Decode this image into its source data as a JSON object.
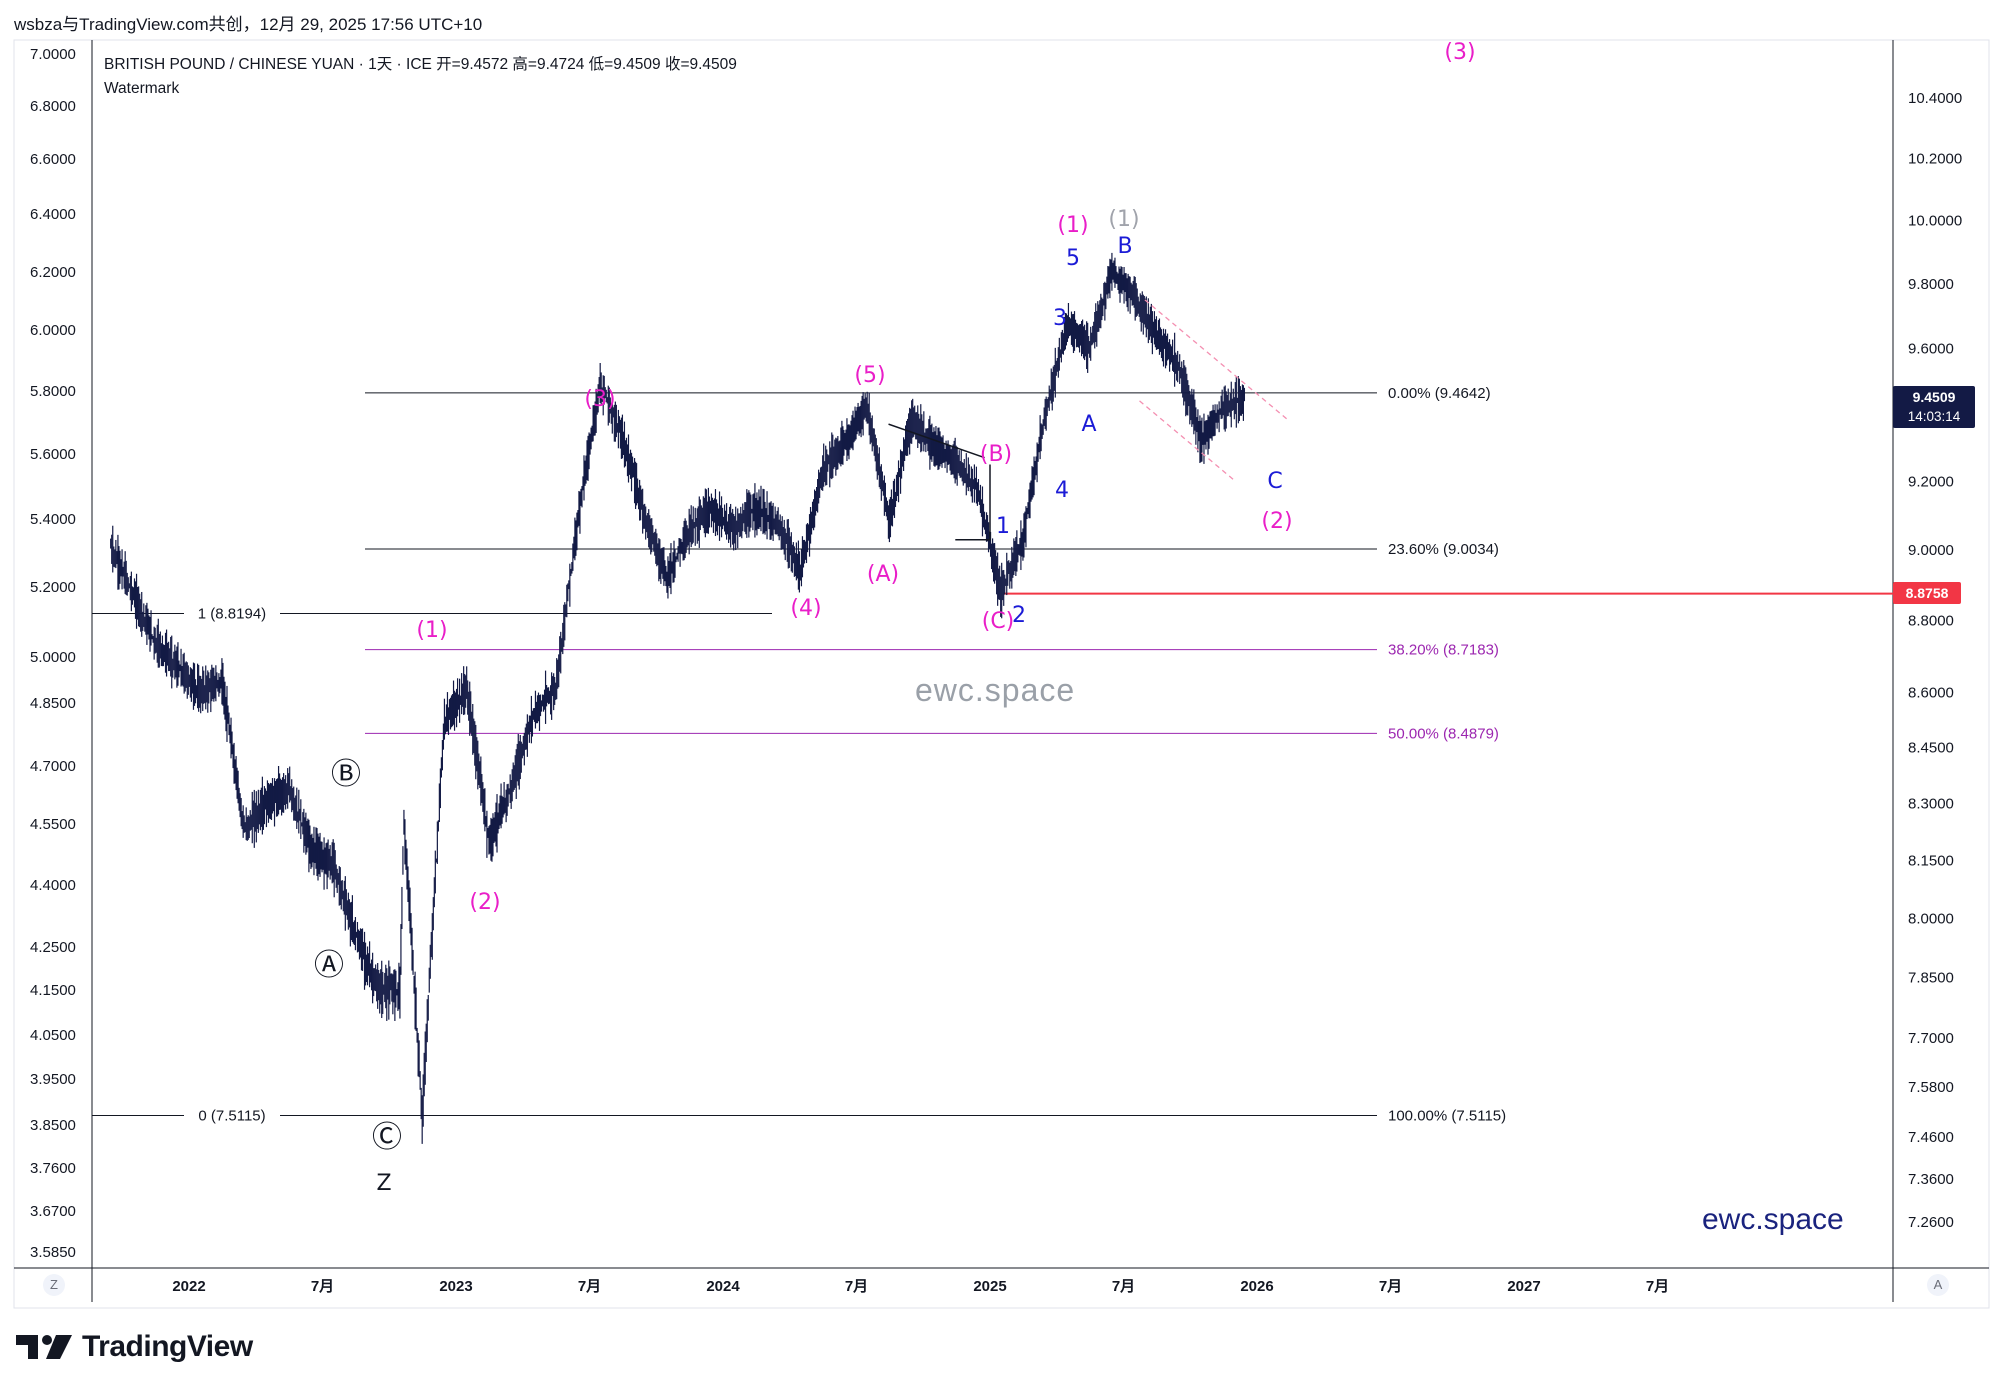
{
  "header": {
    "watermark_line": "wsbza与TradingView.com共创，12月 29, 2025 17:56 UTC+10"
  },
  "legend": {
    "symbol_line": "BRITISH POUND / CHINESE YUAN · 1天 · ICE  开=9.4572  高=9.4724  低=9.4509  收=9.4509",
    "sub": "Watermark"
  },
  "brand": {
    "name": "TradingView",
    "logo": "tradingview-logo"
  },
  "watermarks": {
    "center": "ewc.space",
    "corner": "ewc.space"
  },
  "price_label": {
    "price": "9.4509",
    "countdown": "14:03:14"
  },
  "red_line_label": "8.8758",
  "buttons": {
    "left": "Z",
    "right": "A"
  },
  "colors": {
    "accent_magenta": "#e91ec8",
    "wave_blue": "#1b1bd6",
    "fib_purple": "#9c27b0",
    "price_line_red": "#f23645",
    "candles": "#131a45"
  },
  "chart_data": {
    "type": "candlestick",
    "title": "BRITISH POUND / CHINESE YUAN · 1天 · ICE",
    "left_axis_ticks": [
      "7.0000",
      "6.8000",
      "6.6000",
      "6.4000",
      "6.2000",
      "6.0000",
      "5.8000",
      "5.6000",
      "5.4000",
      "5.2000",
      "5.0000",
      "4.8500",
      "4.7000",
      "4.5500",
      "4.4000",
      "4.2500",
      "4.1500",
      "4.0500",
      "3.9500",
      "3.8500",
      "3.7600",
      "3.6700",
      "3.5850"
    ],
    "right_axis_ticks": [
      "10.4000",
      "10.2000",
      "10.0000",
      "9.8000",
      "9.6000",
      "9.4000",
      "9.2000",
      "9.0000",
      "8.8000",
      "8.6000",
      "8.4500",
      "8.3000",
      "8.1500",
      "8.0000",
      "7.8500",
      "7.7000",
      "7.5800",
      "7.4600",
      "7.3600",
      "7.2600"
    ],
    "x_axis_ticks": [
      "2022",
      "7月",
      "2023",
      "7月",
      "2024",
      "7月",
      "2025",
      "7月",
      "2026",
      "7月",
      "2027",
      "7月"
    ],
    "price_path": [
      [
        "2021-09",
        9.01
      ],
      [
        "2021-11",
        8.74
      ],
      [
        "2022-01",
        8.6
      ],
      [
        "2022-02",
        8.63
      ],
      [
        "2022-03",
        8.23
      ],
      [
        "2022-04",
        8.3
      ],
      [
        "2022-05",
        8.34
      ],
      [
        "2022-06",
        8.18
      ],
      [
        "2022-07",
        8.14
      ],
      [
        "2022-08",
        7.96
      ],
      [
        "2022-09",
        7.82
      ],
      [
        "2022-10",
        7.82
      ],
      [
        "2022-10",
        8.25
      ],
      [
        "2022-11",
        7.51
      ],
      [
        "2022-12",
        8.52
      ],
      [
        "2023-01",
        8.61
      ],
      [
        "2023-02",
        8.2
      ],
      [
        "2023-03",
        8.34
      ],
      [
        "2023-04",
        8.54
      ],
      [
        "2023-05",
        8.61
      ],
      [
        "2023-06",
        9.09
      ],
      [
        "2023-07",
        9.49
      ],
      [
        "2023-08",
        9.33
      ],
      [
        "2023-09",
        9.1
      ],
      [
        "2023-10",
        8.92
      ],
      [
        "2023-11",
        9.06
      ],
      [
        "2023-12",
        9.12
      ],
      [
        "2024-01",
        9.06
      ],
      [
        "2024-02",
        9.12
      ],
      [
        "2024-03",
        9.07
      ],
      [
        "2024-04",
        8.94
      ],
      [
        "2024-05",
        9.23
      ],
      [
        "2024-06",
        9.31
      ],
      [
        "2024-07",
        9.42
      ],
      [
        "2024-08",
        9.08
      ],
      [
        "2024-09",
        9.39
      ],
      [
        "2024-10",
        9.3
      ],
      [
        "2024-11",
        9.26
      ],
      [
        "2024-12",
        9.17
      ],
      [
        "2025-01",
        8.88
      ],
      [
        "2025-02",
        9.03
      ],
      [
        "2025-03",
        9.4
      ],
      [
        "2025-04",
        9.67
      ],
      [
        "2025-05",
        9.6
      ],
      [
        "2025-06",
        9.84
      ],
      [
        "2025-07",
        9.76
      ],
      [
        "2025-08",
        9.64
      ],
      [
        "2025-09",
        9.55
      ],
      [
        "2025-10",
        9.32
      ],
      [
        "2025-11",
        9.42
      ],
      [
        "2025-12",
        9.45
      ]
    ],
    "fib_levels": [
      {
        "label": "0.00% (9.4642)",
        "value": 9.4642
      },
      {
        "label": "23.60% (9.0034)",
        "value": 9.0034
      },
      {
        "label": "38.20% (8.7183)",
        "value": 8.7183
      },
      {
        "label": "50.00% (8.4879)",
        "value": 8.4879
      },
      {
        "label": "100.00% (7.5115)",
        "value": 7.5115
      },
      {
        "label": "1 (8.8194)",
        "value": 8.8194
      },
      {
        "label": "0 (7.5115)",
        "value": 7.5115
      }
    ],
    "horizontal_line": 8.8758,
    "wave_labels": [
      {
        "text": "(1)",
        "color": "magenta"
      },
      {
        "text": "(2)",
        "color": "magenta"
      },
      {
        "text": "(3)",
        "color": "magenta"
      },
      {
        "text": "(4)",
        "color": "magenta"
      },
      {
        "text": "(5)",
        "color": "magenta"
      },
      {
        "text": "(A)",
        "color": "magenta"
      },
      {
        "text": "(B)",
        "color": "magenta"
      },
      {
        "text": "(C)",
        "color": "magenta"
      },
      {
        "text": "(1)",
        "color": "magenta"
      },
      {
        "text": "(1)",
        "color": "gray"
      },
      {
        "text": "(2)",
        "color": "magenta"
      },
      {
        "text": "(3)",
        "color": "magenta"
      },
      {
        "text": "1",
        "color": "blue"
      },
      {
        "text": "2",
        "color": "blue"
      },
      {
        "text": "3",
        "color": "blue"
      },
      {
        "text": "4",
        "color": "blue"
      },
      {
        "text": "5",
        "color": "blue"
      },
      {
        "text": "A",
        "color": "blue"
      },
      {
        "text": "B",
        "color": "blue"
      },
      {
        "text": "C",
        "color": "blue"
      },
      {
        "text": "Ⓐ",
        "color": "black"
      },
      {
        "text": "Ⓑ",
        "color": "black"
      },
      {
        "text": "Ⓒ",
        "color": "black"
      },
      {
        "text": "Z",
        "color": "black"
      }
    ]
  }
}
